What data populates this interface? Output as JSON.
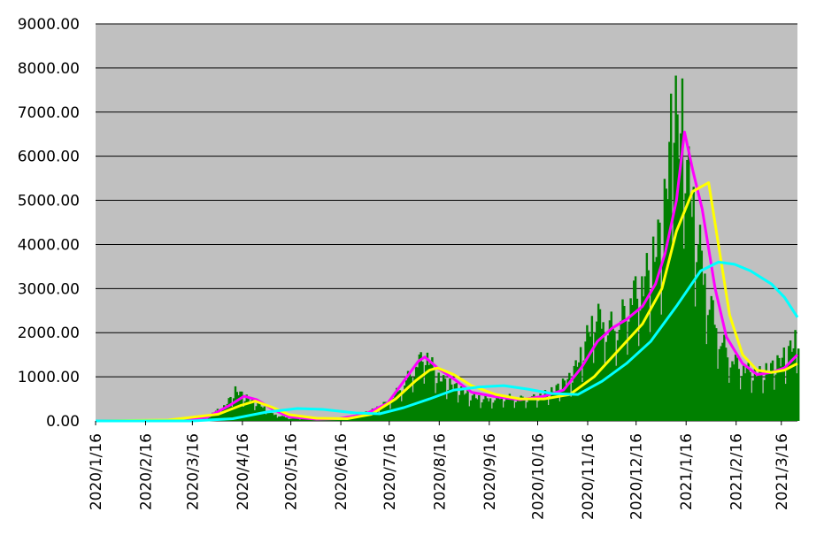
{
  "chart_data": {
    "type": "bar",
    "title": "",
    "xlabel": "",
    "ylabel": "",
    "ylim": [
      0,
      9000
    ],
    "yticks": [
      "0.00",
      "1000.00",
      "2000.00",
      "3000.00",
      "4000.00",
      "5000.00",
      "6000.00",
      "7000.00",
      "8000.00",
      "9000.00"
    ],
    "xticks": [
      "2020/1/16",
      "2020/2/16",
      "2020/3/16",
      "2020/4/16",
      "2020/5/16",
      "2020/6/16",
      "2020/7/16",
      "2020/8/16",
      "2020/9/16",
      "2020/10/16",
      "2020/11/16",
      "2020/12/16",
      "2021/1/16",
      "2021/2/16",
      "2021/3/16"
    ],
    "x_start": "2020-01-16",
    "x_end": "2021-03-26",
    "plot_background": "#c0c0c0",
    "grid": true,
    "legend": "none",
    "bars": {
      "color": "#008000",
      "daily_keypoints": [
        [
          "2020-01-16",
          0
        ],
        [
          "2020-02-20",
          10
        ],
        [
          "2020-03-15",
          40
        ],
        [
          "2020-03-25",
          120
        ],
        [
          "2020-04-05",
          350
        ],
        [
          "2020-04-11",
          700
        ],
        [
          "2020-04-17",
          560
        ],
        [
          "2020-04-25",
          400
        ],
        [
          "2020-05-05",
          150
        ],
        [
          "2020-05-15",
          60
        ],
        [
          "2020-05-30",
          40
        ],
        [
          "2020-06-15",
          60
        ],
        [
          "2020-06-28",
          150
        ],
        [
          "2020-07-05",
          250
        ],
        [
          "2020-07-15",
          450
        ],
        [
          "2020-07-25",
          900
        ],
        [
          "2020-08-02",
          1350
        ],
        [
          "2020-08-07",
          1580
        ],
        [
          "2020-08-15",
          1000
        ],
        [
          "2020-08-25",
          800
        ],
        [
          "2020-09-05",
          560
        ],
        [
          "2020-09-15",
          500
        ],
        [
          "2020-09-25",
          560
        ],
        [
          "2020-10-05",
          520
        ],
        [
          "2020-10-15",
          550
        ],
        [
          "2020-10-25",
          700
        ],
        [
          "2020-11-05",
          1000
        ],
        [
          "2020-11-12",
          1600
        ],
        [
          "2020-11-20",
          2500
        ],
        [
          "2020-11-28",
          2200
        ],
        [
          "2020-12-05",
          2300
        ],
        [
          "2020-12-12",
          2900
        ],
        [
          "2020-12-20",
          3200
        ],
        [
          "2020-12-26",
          3800
        ],
        [
          "2021-01-01",
          4500
        ],
        [
          "2021-01-05",
          6100
        ],
        [
          "2021-01-08",
          7880
        ],
        [
          "2021-01-10",
          6500
        ],
        [
          "2021-01-14",
          7100
        ],
        [
          "2021-01-16",
          5800
        ],
        [
          "2021-01-22",
          4500
        ],
        [
          "2021-01-26",
          3500
        ],
        [
          "2021-02-01",
          2500
        ],
        [
          "2021-02-07",
          1800
        ],
        [
          "2021-02-14",
          1400
        ],
        [
          "2021-02-22",
          1200
        ],
        [
          "2021-03-01",
          1100
        ],
        [
          "2021-03-08",
          1200
        ],
        [
          "2021-03-15",
          1400
        ],
        [
          "2021-03-22",
          1700
        ],
        [
          "2021-03-26",
          2050
        ]
      ]
    },
    "series": [
      {
        "color": "#ff00ff",
        "x": [
          "2020-01-16",
          "2020-03-01",
          "2020-03-25",
          "2020-04-08",
          "2020-04-17",
          "2020-04-25",
          "2020-05-05",
          "2020-05-15",
          "2020-06-01",
          "2020-06-15",
          "2020-07-01",
          "2020-07-15",
          "2020-07-25",
          "2020-08-03",
          "2020-08-07",
          "2020-08-15",
          "2020-08-25",
          "2020-09-05",
          "2020-09-20",
          "2020-10-05",
          "2020-10-20",
          "2020-11-01",
          "2020-11-12",
          "2020-11-22",
          "2020-12-01",
          "2020-12-10",
          "2020-12-20",
          "2020-12-28",
          "2021-01-03",
          "2021-01-10",
          "2021-01-15",
          "2021-01-20",
          "2021-01-26",
          "2021-02-03",
          "2021-02-10",
          "2021-02-20",
          "2021-03-01",
          "2021-03-10",
          "2021-03-18",
          "2021-03-26"
        ],
        "values": [
          0,
          10,
          80,
          350,
          560,
          480,
          260,
          90,
          40,
          50,
          150,
          400,
          900,
          1350,
          1450,
          1200,
          950,
          650,
          550,
          480,
          560,
          700,
          1200,
          1800,
          2100,
          2300,
          2600,
          3100,
          3800,
          5000,
          6550,
          5700,
          4800,
          3000,
          1900,
          1300,
          1050,
          1100,
          1200,
          1500
        ]
      },
      {
        "color": "#ffff00",
        "x": [
          "2020-01-16",
          "2020-03-01",
          "2020-04-01",
          "2020-04-15",
          "2020-04-24",
          "2020-05-05",
          "2020-05-15",
          "2020-06-01",
          "2020-06-20",
          "2020-07-05",
          "2020-07-20",
          "2020-08-01",
          "2020-08-10",
          "2020-08-15",
          "2020-08-25",
          "2020-09-05",
          "2020-09-20",
          "2020-10-05",
          "2020-10-20",
          "2020-11-05",
          "2020-11-20",
          "2020-12-05",
          "2020-12-20",
          "2021-01-01",
          "2021-01-10",
          "2021-01-20",
          "2021-01-30",
          "2021-02-05",
          "2021-02-12",
          "2021-02-20",
          "2021-03-01",
          "2021-03-10",
          "2021-03-18",
          "2021-03-26"
        ],
        "values": [
          0,
          20,
          150,
          350,
          450,
          300,
          140,
          60,
          50,
          150,
          500,
          900,
          1150,
          1200,
          1050,
          800,
          600,
          500,
          500,
          600,
          1000,
          1600,
          2200,
          3000,
          4300,
          5200,
          5400,
          4000,
          2400,
          1500,
          1150,
          1100,
          1150,
          1300
        ]
      },
      {
        "color": "#00ffff",
        "x": [
          "2020-01-16",
          "2020-03-16",
          "2020-04-10",
          "2020-05-01",
          "2020-05-20",
          "2020-06-05",
          "2020-06-25",
          "2020-07-10",
          "2020-07-25",
          "2020-08-10",
          "2020-08-25",
          "2020-09-10",
          "2020-09-25",
          "2020-10-10",
          "2020-10-25",
          "2020-11-10",
          "2020-11-25",
          "2020-12-10",
          "2020-12-25",
          "2021-01-10",
          "2021-01-25",
          "2021-02-05",
          "2021-02-15",
          "2021-02-25",
          "2021-03-10",
          "2021-03-18",
          "2021-03-26"
        ],
        "values": [
          0,
          0,
          50,
          200,
          280,
          260,
          180,
          160,
          300,
          500,
          700,
          770,
          800,
          720,
          620,
          600,
          900,
          1300,
          1800,
          2600,
          3400,
          3600,
          3550,
          3400,
          3100,
          2800,
          2350
        ]
      }
    ]
  }
}
